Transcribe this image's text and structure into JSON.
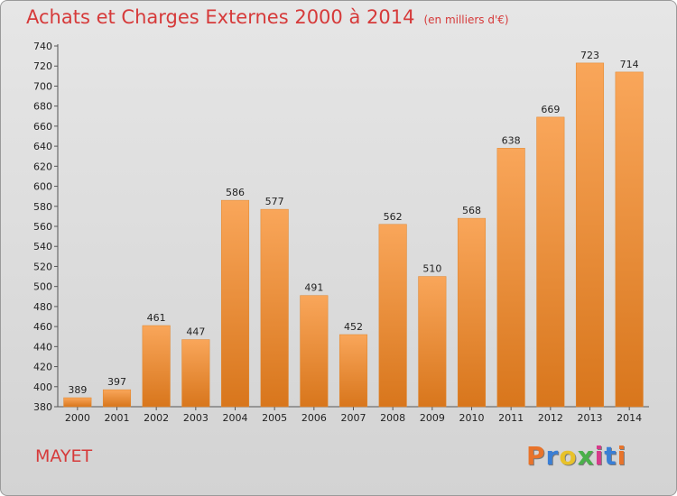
{
  "header": {
    "title": "Achats et Charges Externes 2000 à 2014",
    "subtitle": "(en milliers d'€)"
  },
  "footer": {
    "commune": "MAYET",
    "logo_letters": [
      {
        "ch": "P",
        "color": "#e8732a"
      },
      {
        "ch": "r",
        "color": "#3a7fd6"
      },
      {
        "ch": "o",
        "color": "#e8c22a"
      },
      {
        "ch": "x",
        "color": "#4ab04a"
      },
      {
        "ch": "i",
        "color": "#d63a8a"
      },
      {
        "ch": "t",
        "color": "#3a7fd6"
      },
      {
        "ch": "i",
        "color": "#e8732a"
      }
    ]
  },
  "chart_data": {
    "type": "bar",
    "categories": [
      "2000",
      "2001",
      "2002",
      "2003",
      "2004",
      "2005",
      "2006",
      "2007",
      "2008",
      "2009",
      "2010",
      "2011",
      "2012",
      "2013",
      "2014"
    ],
    "values": [
      389,
      397,
      461,
      447,
      586,
      577,
      491,
      452,
      562,
      510,
      568,
      638,
      669,
      723,
      714
    ],
    "title": "Achats et Charges Externes 2000 à 2014",
    "subtitle": "(en milliers d'€)",
    "xlabel": "",
    "ylabel": "",
    "ylim": [
      380,
      740
    ],
    "ytick_step": 20,
    "grid": false,
    "bar_color_top": "#f9a65a",
    "bar_color_bottom": "#d8761c"
  }
}
